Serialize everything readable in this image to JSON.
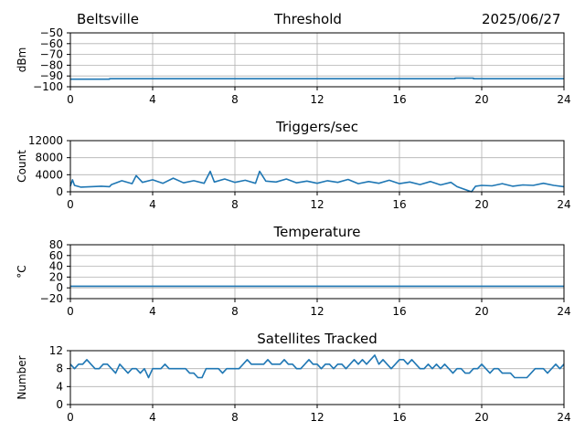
{
  "header": {
    "left": "Beltsville",
    "center": "Threshold",
    "right": "2025/06/27"
  },
  "colors": {
    "series": "#1f77b4",
    "grid": "#b0b0b0",
    "axis": "#000000"
  },
  "chart_data": [
    {
      "type": "line",
      "title": "Threshold",
      "ylabel": "dBm",
      "xlim": [
        0,
        24
      ],
      "ylim": [
        -100,
        -50
      ],
      "xticks": [
        0,
        4,
        8,
        12,
        16,
        20,
        24
      ],
      "yticks": [
        -100,
        -90,
        -80,
        -70,
        -60,
        -50
      ],
      "grid": true,
      "series": [
        {
          "x": [
            0,
            1.9,
            1.9,
            18.7,
            18.7,
            19.6,
            19.6,
            24
          ],
          "y": [
            -93,
            -93,
            -92.5,
            -92.5,
            -92,
            -92,
            -92.5,
            -92.5
          ]
        }
      ]
    },
    {
      "type": "line",
      "title": "Triggers/sec",
      "ylabel": "Count",
      "xlim": [
        0,
        24
      ],
      "ylim": [
        0,
        12000
      ],
      "xticks": [
        0,
        4,
        8,
        12,
        16,
        20,
        24
      ],
      "yticks": [
        0,
        4000,
        8000,
        12000
      ],
      "grid": true,
      "series": [
        {
          "x": [
            0,
            0.1,
            0.2,
            0.5,
            1,
            1.5,
            1.9,
            2,
            2.5,
            3,
            3.2,
            3.5,
            4,
            4.5,
            5,
            5.5,
            6,
            6.5,
            6.8,
            7,
            7.5,
            8,
            8.5,
            9,
            9.2,
            9.5,
            10,
            10.5,
            11,
            11.5,
            12,
            12.5,
            13,
            13.5,
            14,
            14.5,
            15,
            15.5,
            16,
            16.5,
            17,
            17.5,
            18,
            18.5,
            18.8,
            19.5,
            19.7,
            20,
            20.5,
            21,
            21.5,
            22,
            22.5,
            23,
            23.5,
            24
          ],
          "y": [
            1300,
            2800,
            1500,
            1100,
            1200,
            1300,
            1200,
            1700,
            2600,
            1900,
            3800,
            2200,
            2800,
            2000,
            3200,
            2100,
            2600,
            2000,
            4800,
            2300,
            3000,
            2200,
            2700,
            2000,
            4800,
            2500,
            2300,
            3000,
            2100,
            2500,
            2000,
            2600,
            2200,
            2900,
            1900,
            2400,
            2000,
            2700,
            1900,
            2300,
            1700,
            2400,
            1600,
            2200,
            1200,
            0,
            1300,
            1500,
            1400,
            1900,
            1300,
            1600,
            1500,
            2000,
            1500,
            1200
          ]
        }
      ]
    },
    {
      "type": "line",
      "title": "Temperature",
      "ylabel": "°C",
      "xlim": [
        0,
        24
      ],
      "ylim": [
        -20,
        80
      ],
      "xticks": [
        0,
        4,
        8,
        12,
        16,
        20,
        24
      ],
      "yticks": [
        -20,
        0,
        20,
        40,
        60,
        80
      ],
      "grid": true,
      "series": [
        {
          "x": [
            0,
            24
          ],
          "y": [
            3,
            3
          ]
        }
      ]
    },
    {
      "type": "line",
      "title": "Satellites Tracked",
      "ylabel": "Number",
      "xlim": [
        0,
        24
      ],
      "ylim": [
        0,
        12
      ],
      "xticks": [
        0,
        4,
        8,
        12,
        16,
        20,
        24
      ],
      "yticks": [
        0,
        4,
        8,
        12
      ],
      "grid": true,
      "series": [
        {
          "x": [
            0,
            0.2,
            0.4,
            0.6,
            0.8,
            1.0,
            1.2,
            1.4,
            1.6,
            1.8,
            2.0,
            2.2,
            2.4,
            2.6,
            2.8,
            3.0,
            3.2,
            3.4,
            3.6,
            3.8,
            4.0,
            4.2,
            4.4,
            4.6,
            4.8,
            5.0,
            5.2,
            5.4,
            5.6,
            5.8,
            6.0,
            6.2,
            6.4,
            6.6,
            6.8,
            7.0,
            7.2,
            7.4,
            7.6,
            7.8,
            8.0,
            8.2,
            8.4,
            8.6,
            8.8,
            9.0,
            9.2,
            9.4,
            9.6,
            9.8,
            10.0,
            10.2,
            10.4,
            10.6,
            10.8,
            11.0,
            11.2,
            11.4,
            11.6,
            11.8,
            12.0,
            12.2,
            12.4,
            12.6,
            12.8,
            13.0,
            13.2,
            13.4,
            13.6,
            13.8,
            14.0,
            14.2,
            14.4,
            14.6,
            14.8,
            15.0,
            15.2,
            15.4,
            15.6,
            15.8,
            16.0,
            16.2,
            16.4,
            16.6,
            16.8,
            17.0,
            17.2,
            17.4,
            17.6,
            17.8,
            18.0,
            18.2,
            18.4,
            18.6,
            18.8,
            19.0,
            19.2,
            19.4,
            19.6,
            19.8,
            20.0,
            20.2,
            20.4,
            20.6,
            20.8,
            21.0,
            21.2,
            21.4,
            21.6,
            21.8,
            22.0,
            22.2,
            22.4,
            22.6,
            22.8,
            23.0,
            23.2,
            23.4,
            23.6,
            23.8,
            24.0
          ],
          "y": [
            9,
            8,
            9,
            9,
            10,
            9,
            8,
            8,
            9,
            9,
            8,
            7,
            9,
            8,
            7,
            8,
            8,
            7,
            8,
            6,
            8,
            8,
            8,
            9,
            8,
            8,
            8,
            8,
            8,
            7,
            7,
            6,
            6,
            8,
            8,
            8,
            8,
            7,
            8,
            8,
            8,
            8,
            9,
            10,
            9,
            9,
            9,
            9,
            10,
            9,
            9,
            9,
            10,
            9,
            9,
            8,
            8,
            9,
            10,
            9,
            9,
            8,
            9,
            9,
            8,
            9,
            9,
            8,
            9,
            10,
            9,
            10,
            9,
            10,
            11,
            9,
            10,
            9,
            8,
            9,
            10,
            10,
            9,
            10,
            9,
            8,
            8,
            9,
            8,
            9,
            8,
            9,
            8,
            7,
            8,
            8,
            7,
            7,
            8,
            8,
            9,
            8,
            7,
            8,
            8,
            7,
            7,
            7,
            6,
            6,
            6,
            6,
            7,
            8,
            8,
            8,
            7,
            8,
            9,
            8,
            9
          ]
        }
      ]
    }
  ]
}
